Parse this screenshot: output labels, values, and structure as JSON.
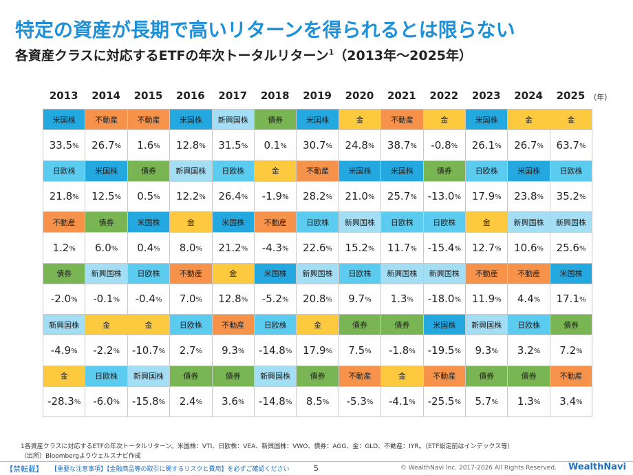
{
  "header": {
    "title": "特定の資産が長期で高いリターンを得られるとは限らない",
    "subtitle": "各資産クラスに対応するETFの年次トータルリターン",
    "subtitle_sup": "1",
    "subtitle_period": "（2013年～2025年）"
  },
  "table": {
    "years": [
      "2013",
      "2014",
      "2015",
      "2016",
      "2017",
      "2018",
      "2019",
      "2020",
      "2021",
      "2022",
      "2023",
      "2024",
      "2025"
    ],
    "year_unit": "（年）",
    "asset_colors": {
      "米国株": "#23a8e0",
      "日欧株": "#5ccbf0",
      "新興国株": "#a3def5",
      "不動産": "#f7924a",
      "債券": "#7ab553",
      "金": "#fcc93f"
    },
    "rows": [
      [
        {
          "asset": "米国株",
          "value": "33.5",
          "unit": "%"
        },
        {
          "asset": "不動産",
          "value": "26.7",
          "unit": "%"
        },
        {
          "asset": "不動産",
          "value": "1.6",
          "unit": "%"
        },
        {
          "asset": "米国株",
          "value": "12.8",
          "unit": "%"
        },
        {
          "asset": "新興国株",
          "value": "31.5",
          "unit": "%"
        },
        {
          "asset": "債券",
          "value": "0.1",
          "unit": "%"
        },
        {
          "asset": "米国株",
          "value": "30.7",
          "unit": "%"
        },
        {
          "asset": "金",
          "value": "24.8",
          "unit": "%"
        },
        {
          "asset": "不動産",
          "value": "38.7",
          "unit": "%"
        },
        {
          "asset": "金",
          "value": "-0.8",
          "unit": "%"
        },
        {
          "asset": "米国株",
          "value": "26.1",
          "unit": "%"
        },
        {
          "asset": "金",
          "value": "26.7",
          "unit": "%"
        },
        {
          "asset": "金",
          "value": "63.7",
          "unit": "%"
        }
      ],
      [
        {
          "asset": "日欧株",
          "value": "21.8",
          "unit": "%"
        },
        {
          "asset": "米国株",
          "value": "12.5",
          "unit": "%"
        },
        {
          "asset": "債券",
          "value": "0.5",
          "unit": "%"
        },
        {
          "asset": "新興国株",
          "value": "12.2",
          "unit": "%"
        },
        {
          "asset": "日欧株",
          "value": "26.4",
          "unit": "%"
        },
        {
          "asset": "金",
          "value": "-1.9",
          "unit": "%"
        },
        {
          "asset": "不動産",
          "value": "28.2",
          "unit": "%"
        },
        {
          "asset": "米国株",
          "value": "21.0",
          "unit": "%"
        },
        {
          "asset": "米国株",
          "value": "25.7",
          "unit": "%"
        },
        {
          "asset": "債券",
          "value": "-13.0",
          "unit": "%"
        },
        {
          "asset": "日欧株",
          "value": "17.9",
          "unit": "%"
        },
        {
          "asset": "米国株",
          "value": "23.8",
          "unit": "%"
        },
        {
          "asset": "日欧株",
          "value": "35.2",
          "unit": "%"
        }
      ],
      [
        {
          "asset": "不動産",
          "value": "1.2",
          "unit": "%"
        },
        {
          "asset": "債券",
          "value": "6.0",
          "unit": "%"
        },
        {
          "asset": "米国株",
          "value": "0.4",
          "unit": "%"
        },
        {
          "asset": "金",
          "value": "8.0",
          "unit": "%"
        },
        {
          "asset": "米国株",
          "value": "21.2",
          "unit": "%"
        },
        {
          "asset": "不動産",
          "value": "-4.3",
          "unit": "%"
        },
        {
          "asset": "日欧株",
          "value": "22.6",
          "unit": "%"
        },
        {
          "asset": "新興国株",
          "value": "15.2",
          "unit": "%"
        },
        {
          "asset": "日欧株",
          "value": "11.7",
          "unit": "%"
        },
        {
          "asset": "日欧株",
          "value": "-15.4",
          "unit": "%"
        },
        {
          "asset": "金",
          "value": "12.7",
          "unit": "%"
        },
        {
          "asset": "新興国株",
          "value": "10.6",
          "unit": "%"
        },
        {
          "asset": "新興国株",
          "value": "25.6",
          "unit": "%"
        }
      ],
      [
        {
          "asset": "債券",
          "value": "-2.0",
          "unit": "%"
        },
        {
          "asset": "新興国株",
          "value": "-0.1",
          "unit": "%"
        },
        {
          "asset": "日欧株",
          "value": "-0.4",
          "unit": "%"
        },
        {
          "asset": "不動産",
          "value": "7.0",
          "unit": "%"
        },
        {
          "asset": "金",
          "value": "12.8",
          "unit": "%"
        },
        {
          "asset": "米国株",
          "value": "-5.2",
          "unit": "%"
        },
        {
          "asset": "新興国株",
          "value": "20.8",
          "unit": "%"
        },
        {
          "asset": "日欧株",
          "value": "9.7",
          "unit": "%"
        },
        {
          "asset": "新興国株",
          "value": "1.3",
          "unit": "%"
        },
        {
          "asset": "新興国株",
          "value": "-18.0",
          "unit": "%"
        },
        {
          "asset": "不動産",
          "value": "11.9",
          "unit": "%"
        },
        {
          "asset": "不動産",
          "value": "4.4",
          "unit": "%"
        },
        {
          "asset": "米国株",
          "value": "17.1",
          "unit": "%"
        }
      ],
      [
        {
          "asset": "新興国株",
          "value": "-4.9",
          "unit": "%"
        },
        {
          "asset": "金",
          "value": "-2.2",
          "unit": "%"
        },
        {
          "asset": "金",
          "value": "-10.7",
          "unit": "%"
        },
        {
          "asset": "日欧株",
          "value": "2.7",
          "unit": "%"
        },
        {
          "asset": "不動産",
          "value": "9.3",
          "unit": "%"
        },
        {
          "asset": "日欧株",
          "value": "-14.8",
          "unit": "%"
        },
        {
          "asset": "金",
          "value": "17.9",
          "unit": "%"
        },
        {
          "asset": "債券",
          "value": "7.5",
          "unit": "%"
        },
        {
          "asset": "債券",
          "value": "-1.8",
          "unit": "%"
        },
        {
          "asset": "米国株",
          "value": "-19.5",
          "unit": "%"
        },
        {
          "asset": "新興国株",
          "value": "9.3",
          "unit": "%"
        },
        {
          "asset": "日欧株",
          "value": "3.2",
          "unit": "%"
        },
        {
          "asset": "債券",
          "value": "7.2",
          "unit": "%"
        }
      ],
      [
        {
          "asset": "金",
          "value": "-28.3",
          "unit": "%"
        },
        {
          "asset": "日欧株",
          "value": "-6.0",
          "unit": "%"
        },
        {
          "asset": "新興国株",
          "value": "-15.8",
          "unit": "%"
        },
        {
          "asset": "債券",
          "value": "2.4",
          "unit": "%"
        },
        {
          "asset": "債券",
          "value": "3.6",
          "unit": "%"
        },
        {
          "asset": "新興国株",
          "value": "-14.8",
          "unit": "%"
        },
        {
          "asset": "債券",
          "value": "8.5",
          "unit": "%"
        },
        {
          "asset": "不動産",
          "value": "-5.3",
          "unit": "%"
        },
        {
          "asset": "金",
          "value": "-4.1",
          "unit": "%"
        },
        {
          "asset": "不動産",
          "value": "-25.5",
          "unit": "%"
        },
        {
          "asset": "債券",
          "value": "5.7",
          "unit": "%"
        },
        {
          "asset": "債券",
          "value": "1.3",
          "unit": "%"
        },
        {
          "asset": "不動産",
          "value": "3.4",
          "unit": "%"
        }
      ]
    ]
  },
  "footer": {
    "note": "1各資産クラスに対応するETFの年次トータルリターン。米国株：VTI、日欧株：VEA、新興国株：VWO、債券：AGG、金：GLD、不動産：IYR。（ETF設定前はインデックス等）",
    "source": "（出所）Bloombergよりウェルスナビ作成",
    "ban": "【禁転載】",
    "notice": "【重要な注意事項】【金融商品等の取引に関するリスクと費用】を必ずご確認ください",
    "page": "5",
    "copyright": "© WealthNavi Inc. 2017-2026 All Rights Reserved.",
    "logo": "WealthNavi"
  }
}
